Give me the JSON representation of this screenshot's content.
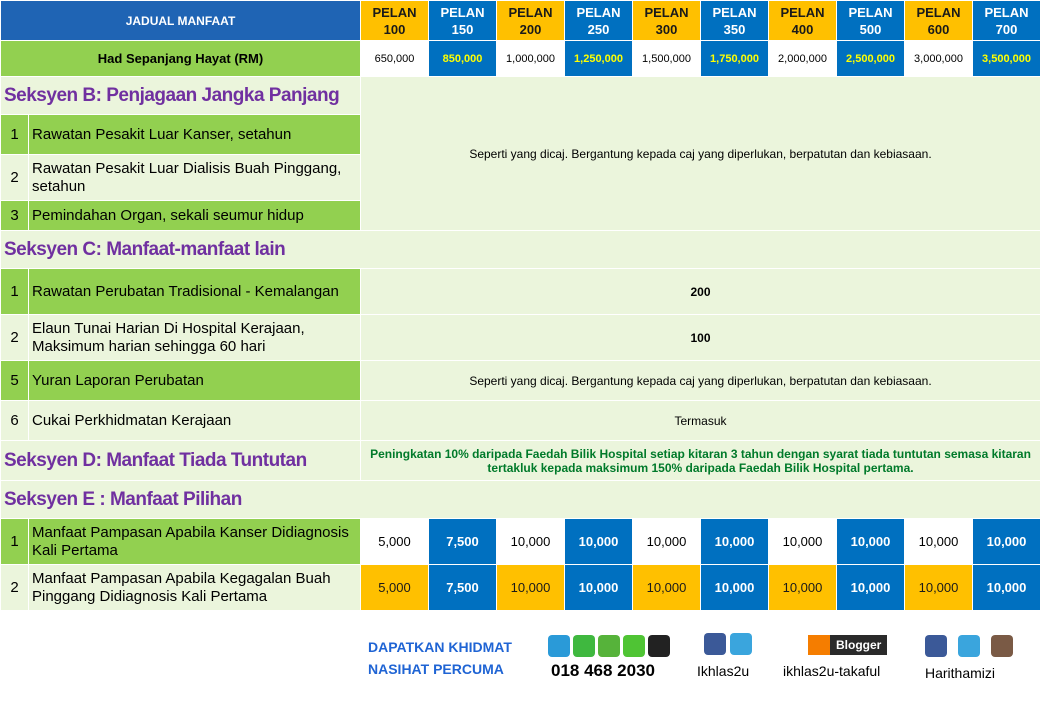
{
  "header": {
    "title": "JADUAL MANFAAT",
    "plans": [
      "PELAN 100",
      "PELAN 150",
      "PELAN 200",
      "PELAN 250",
      "PELAN 300",
      "PELAN 350",
      "PELAN 400",
      "PELAN 500",
      "PELAN 600",
      "PELAN 700"
    ]
  },
  "limit": {
    "label": "Had Sepanjang Hayat (RM)",
    "values": [
      "650,000",
      "850,000",
      "1,000,000",
      "1,250,000",
      "1,500,000",
      "1,750,000",
      "2,000,000",
      "2,500,000",
      "3,000,000",
      "3,500,000"
    ]
  },
  "sections": [
    {
      "title": "Seksyen B: Penjagaan Jangka Panjang",
      "note": "Seperti yang dicaj. Bergantung kepada caj yang diperlukan,  berpatutan dan kebiasaan.",
      "rows": [
        {
          "no": "1",
          "label": "Rawatan Pesakit Luar Kanser, setahun"
        },
        {
          "no": "2",
          "label": "Rawatan Pesakit Luar Dialisis Buah Pinggang, setahun"
        },
        {
          "no": "3",
          "label": "Pemindahan Organ, sekali seumur hidup"
        }
      ]
    },
    {
      "title": "Seksyen C:  Manfaat-manfaat lain",
      "rows": [
        {
          "no": "1",
          "label": "Rawatan Perubatan Tradisional - Kemalangan",
          "value": "200"
        },
        {
          "no": "2",
          "label": "Elaun Tunai Harian Di Hospital Kerajaan, Maksimum harian sehingga 60 hari",
          "value": "100"
        },
        {
          "no": "5",
          "label": "Yuran Laporan Perubatan",
          "value": "Seperti yang dicaj. Bergantung kepada caj yang diperlukan,  berpatutan dan kebiasaan."
        },
        {
          "no": "6",
          "label": "Cukai Perkhidmatan Kerajaan",
          "value": "Termasuk"
        }
      ]
    },
    {
      "title": "Seksyen D: Manfaat Tiada Tuntutan",
      "value": "Peningkatan 10% daripada Faedah Bilik Hospital setiap kitaran 3 tahun dengan syarat tiada tuntutan semasa kitaran tertakluk kepada maksimum 150% daripada Faedah Bilik Hospital pertama.",
      "rows": []
    },
    {
      "title": "Seksyen E : Manfaat Pilihan",
      "rows": [
        {
          "no": "1",
          "label": "Manfaat Pampasan Apabila Kanser Didiagnosis Kali Pertama",
          "values": [
            "5,000",
            "7,500",
            "10,000",
            "10,000",
            "10,000",
            "10,000",
            "10,000",
            "10,000",
            "10,000",
            "10,000"
          ]
        },
        {
          "no": "2",
          "label": "Manfaat Pampasan Apabila Kegagalan Buah Pinggang Didiagnosis Kali Pertama",
          "values": [
            "5,000",
            "7,500",
            "10,000",
            "10,000",
            "10,000",
            "10,000",
            "10,000",
            "10,000",
            "10,000",
            "10,000"
          ]
        }
      ]
    }
  ],
  "footer": {
    "cta": [
      "DAPATKAN KHIDMAT",
      "NASIHAT PERCUMA"
    ],
    "phone": "018 468 2030",
    "facebook": "Ikhlas2u",
    "blogger_badge": "Blogger",
    "blogger": "ikhlas2u-takaful",
    "social": "Harithamizi"
  }
}
